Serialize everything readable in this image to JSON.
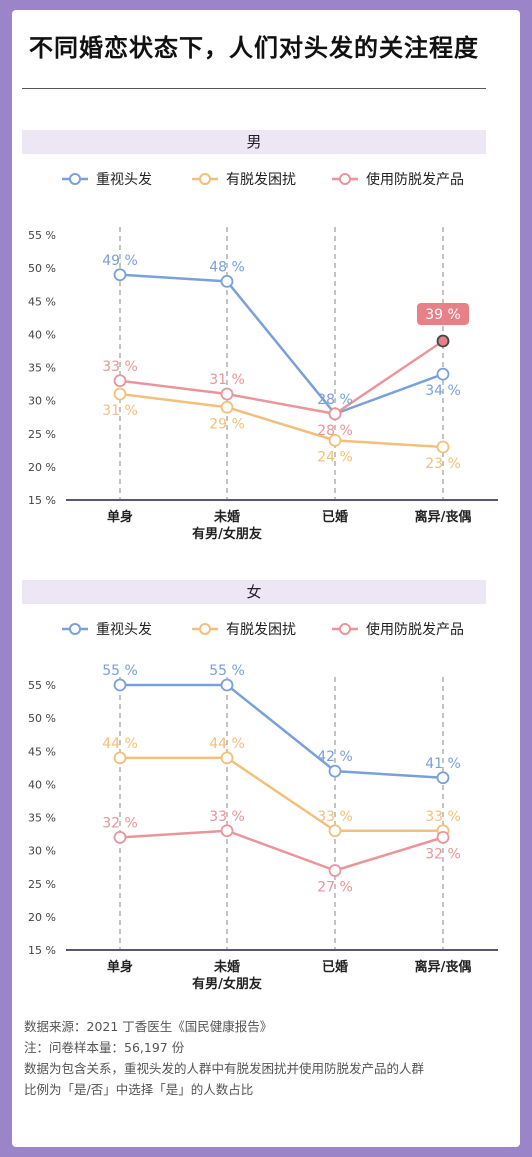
{
  "title": "不同婚恋状态下，人们对头发的关注程度",
  "legend": [
    "重视头发",
    "有脱发困扰",
    "使用防脱发产品"
  ],
  "colors": {
    "series": [
      "#7aa0da",
      "#f2c07a",
      "#e9959b"
    ],
    "highlight": "#e88088",
    "axis": "#555577",
    "grid": "#888888"
  },
  "chart_data": [
    {
      "type": "line",
      "title": "男",
      "categories": [
        "单身",
        "未婚\n有男/女朋友",
        "已婚",
        "离异/丧偶"
      ],
      "ylim": [
        15,
        55
      ],
      "yticks": [
        15,
        20,
        25,
        30,
        35,
        40,
        45,
        50,
        55
      ],
      "ytick_labels": [
        "15 %",
        "20 %",
        "25 %",
        "30 %",
        "35 %",
        "40 %",
        "45 %",
        "50 %",
        "55 %"
      ],
      "grid": "vertical-dashed",
      "legend_position": "top",
      "series": [
        {
          "name": "重视头发",
          "values": [
            49,
            48,
            28,
            34
          ],
          "labels": [
            "49 %",
            "48 %",
            "28 %",
            "34 %"
          ]
        },
        {
          "name": "有脱发困扰",
          "values": [
            31,
            29,
            24,
            23
          ],
          "labels": [
            "31 %",
            "29 %",
            "24 %",
            "23 %"
          ]
        },
        {
          "name": "使用防脱发产品",
          "values": [
            33,
            31,
            28,
            39
          ],
          "labels": [
            "33 %",
            "31 %",
            "28 %",
            "39 %"
          ]
        }
      ]
    },
    {
      "type": "line",
      "title": "女",
      "categories": [
        "单身",
        "未婚\n有男/女朋友",
        "已婚",
        "离异/丧偶"
      ],
      "ylim": [
        15,
        55
      ],
      "yticks": [
        15,
        20,
        25,
        30,
        35,
        40,
        45,
        50,
        55
      ],
      "ytick_labels": [
        "15 %",
        "20 %",
        "25 %",
        "30 %",
        "35 %",
        "40 %",
        "45 %",
        "50 %",
        "55 %"
      ],
      "grid": "vertical-dashed",
      "legend_position": "top",
      "series": [
        {
          "name": "重视头发",
          "values": [
            55,
            55,
            42,
            41
          ],
          "labels": [
            "55 %",
            "55 %",
            "42 %",
            "41 %"
          ]
        },
        {
          "name": "有脱发困扰",
          "values": [
            44,
            44,
            33,
            33
          ],
          "labels": [
            "44 %",
            "44 %",
            "33 %",
            "33 %"
          ]
        },
        {
          "name": "使用防脱发产品",
          "values": [
            32,
            33,
            27,
            32
          ],
          "labels": [
            "32 %",
            "33 %",
            "27 %",
            "32 %"
          ]
        }
      ]
    }
  ],
  "footer": {
    "source": "数据来源：2021 丁香医生《国民健康报告》",
    "note": "注：问卷样本量：56,197 份",
    "desc1": "数据为包含关系，重视头发的人群中有脱发困扰并使用防脱发产品的人群",
    "desc2": "比例为「是/否」中选择「是」的人数占比"
  }
}
